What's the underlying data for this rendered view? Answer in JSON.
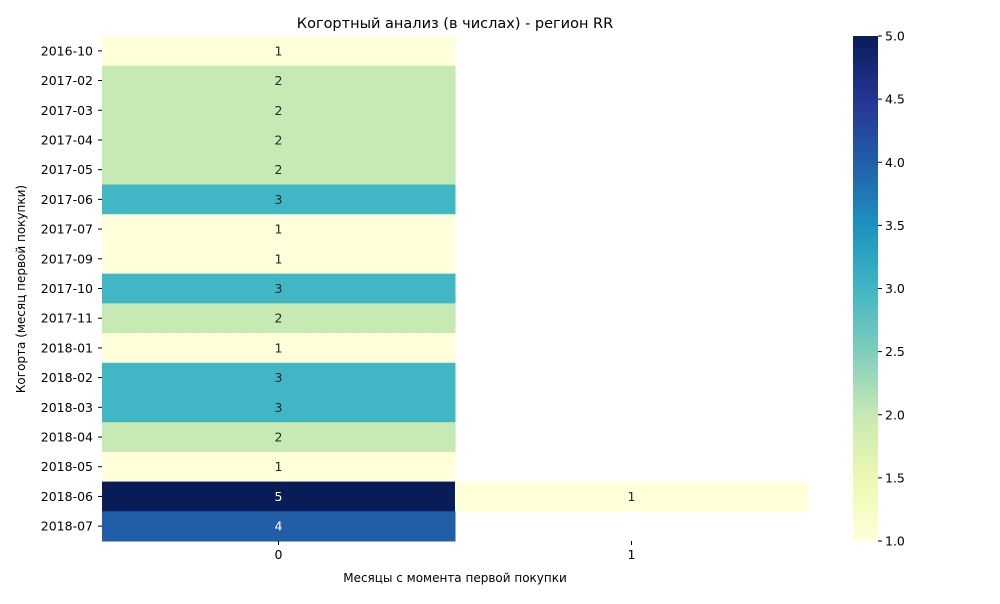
{
  "chart_data": {
    "type": "heatmap",
    "title": "Когортный анализ (в числах) - регион RR",
    "xlabel": "Месяцы с момента первой покупки",
    "ylabel": "Когорта (месяц первой покупки)",
    "x_categories": [
      "0",
      "1"
    ],
    "y_categories": [
      "2016-10",
      "2017-02",
      "2017-03",
      "2017-04",
      "2017-05",
      "2017-06",
      "2017-07",
      "2017-09",
      "2017-10",
      "2017-11",
      "2018-01",
      "2018-02",
      "2018-03",
      "2018-04",
      "2018-05",
      "2018-06",
      "2018-07"
    ],
    "values": [
      [
        1,
        null
      ],
      [
        2,
        null
      ],
      [
        2,
        null
      ],
      [
        2,
        null
      ],
      [
        2,
        null
      ],
      [
        3,
        null
      ],
      [
        1,
        null
      ],
      [
        1,
        null
      ],
      [
        3,
        null
      ],
      [
        2,
        null
      ],
      [
        1,
        null
      ],
      [
        3,
        null
      ],
      [
        3,
        null
      ],
      [
        2,
        null
      ],
      [
        1,
        null
      ],
      [
        5,
        1
      ],
      [
        4,
        null
      ]
    ],
    "colorbar": {
      "colormap": "YlGnBu",
      "vmin": 1.0,
      "vmax": 5.0,
      "ticks": [
        "1.0",
        "1.5",
        "2.0",
        "2.5",
        "3.0",
        "3.5",
        "4.0",
        "4.5",
        "5.0"
      ],
      "stops": [
        "#ffffd9",
        "#edf8b1",
        "#c7e9b4",
        "#7fcdbb",
        "#41b6c4",
        "#1d91c0",
        "#225ea8",
        "#253494",
        "#081d58"
      ]
    },
    "annotations": true,
    "grid": false
  }
}
